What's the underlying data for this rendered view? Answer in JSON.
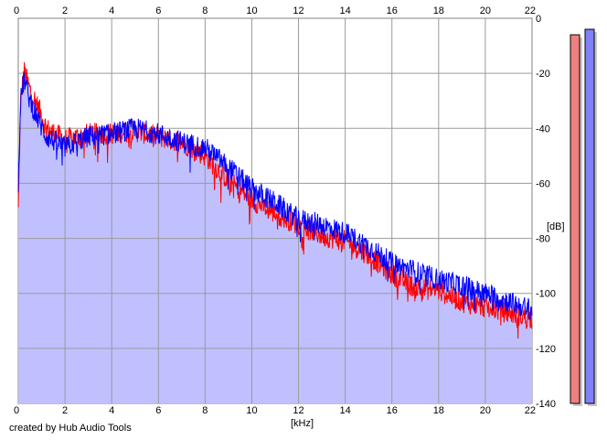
{
  "chart_data": {
    "type": "area",
    "xlabel": "[kHz]",
    "ylabel": "[dB]",
    "xlim": [
      0,
      22
    ],
    "ylim": [
      -140,
      0
    ],
    "x_ticks": [
      "0",
      "2",
      "4",
      "6",
      "8",
      "10",
      "12",
      "14",
      "16",
      "18",
      "20",
      "22"
    ],
    "y_ticks": [
      "0",
      "-20",
      "-40",
      "-60",
      "-80",
      "-100",
      "-120",
      "-140"
    ],
    "grid": true,
    "series": [
      {
        "color": "#ff0000",
        "noise_db": 4,
        "envelope": [
          [
            0,
            -70
          ],
          [
            0.1,
            -30
          ],
          [
            0.25,
            -19
          ],
          [
            0.5,
            -26
          ],
          [
            0.9,
            -33
          ],
          [
            1.2,
            -40
          ],
          [
            2,
            -44
          ],
          [
            3,
            -42
          ],
          [
            4,
            -42
          ],
          [
            5,
            -41
          ],
          [
            6,
            -43
          ],
          [
            7,
            -45
          ],
          [
            8,
            -50
          ],
          [
            9,
            -59
          ],
          [
            10,
            -66
          ],
          [
            11,
            -71
          ],
          [
            12,
            -75
          ],
          [
            13,
            -79
          ],
          [
            14,
            -81
          ],
          [
            15,
            -86
          ],
          [
            16,
            -93
          ],
          [
            17,
            -98
          ],
          [
            18,
            -99
          ],
          [
            19,
            -103
          ],
          [
            20,
            -105
          ],
          [
            21,
            -107
          ],
          [
            22,
            -109
          ]
        ]
      },
      {
        "color": "#0000ff",
        "noise_db": 4,
        "envelope": [
          [
            0,
            -60
          ],
          [
            0.1,
            -30
          ],
          [
            0.25,
            -22
          ],
          [
            0.5,
            -30
          ],
          [
            0.9,
            -38
          ],
          [
            1.2,
            -43
          ],
          [
            2,
            -47
          ],
          [
            3,
            -43
          ],
          [
            4,
            -42
          ],
          [
            5,
            -40
          ],
          [
            6,
            -42
          ],
          [
            7,
            -45
          ],
          [
            8,
            -47
          ],
          [
            9,
            -54
          ],
          [
            10,
            -62
          ],
          [
            11,
            -67
          ],
          [
            12,
            -73
          ],
          [
            13,
            -75
          ],
          [
            14,
            -78
          ],
          [
            15,
            -83
          ],
          [
            16,
            -89
          ],
          [
            17,
            -92
          ],
          [
            18,
            -95
          ],
          [
            19,
            -97
          ],
          [
            20,
            -100
          ],
          [
            21,
            -103
          ],
          [
            22,
            -106
          ]
        ]
      }
    ],
    "level_meters": [
      {
        "channel": "left",
        "color": "#f08080",
        "level_db": -6
      },
      {
        "channel": "right",
        "color": "#8080f8",
        "level_db": -4
      }
    ],
    "fill_color": "#c0c0ff"
  },
  "credit": "created by Hub Audio Tools"
}
